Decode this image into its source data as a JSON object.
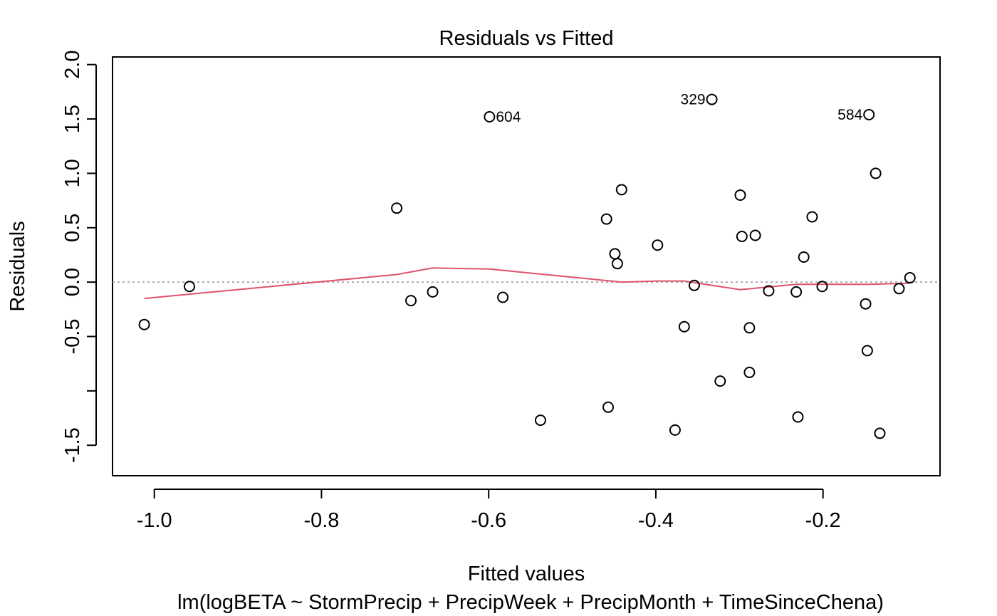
{
  "chart_data": {
    "type": "scatter",
    "title": "Residuals vs Fitted",
    "xlabel": "Fitted values",
    "subtitle": "lm(logBETA ~ StormPrecip + PrecipWeek + PrecipMonth + TimeSinceChena)",
    "ylabel": "Residuals",
    "xlim": [
      -1.05,
      -0.06
    ],
    "ylim": [
      -1.78,
      2.07
    ],
    "x_ticks": [
      -1.0,
      -0.8,
      -0.6,
      -0.4,
      -0.2
    ],
    "x_tick_labels": [
      "-1.0",
      "-0.8",
      "-0.6",
      "-0.4",
      "-0.2"
    ],
    "y_ticks": [
      -1.5,
      -1.0,
      -0.5,
      0.0,
      0.5,
      1.0,
      1.5,
      2.0
    ],
    "y_tick_labels": [
      "-1.5",
      "",
      "-0.5",
      "0.0",
      "0.5",
      "1.0",
      "1.5",
      "2.0"
    ],
    "reference_line": {
      "y": 0,
      "style": "dotted",
      "color": "#aaaaaa"
    },
    "points": [
      {
        "x": -1.012,
        "y": -0.39
      },
      {
        "x": -0.958,
        "y": -0.04
      },
      {
        "x": -0.71,
        "y": 0.68
      },
      {
        "x": -0.693,
        "y": -0.17
      },
      {
        "x": -0.667,
        "y": -0.09
      },
      {
        "x": -0.599,
        "y": 1.52,
        "label": "604"
      },
      {
        "x": -0.583,
        "y": -0.14
      },
      {
        "x": -0.538,
        "y": -1.27
      },
      {
        "x": -0.459,
        "y": 0.58
      },
      {
        "x": -0.457,
        "y": -1.15
      },
      {
        "x": -0.449,
        "y": 0.26
      },
      {
        "x": -0.446,
        "y": 0.17
      },
      {
        "x": -0.441,
        "y": 0.85
      },
      {
        "x": -0.398,
        "y": 0.34
      },
      {
        "x": -0.377,
        "y": -1.36
      },
      {
        "x": -0.366,
        "y": -0.41
      },
      {
        "x": -0.354,
        "y": -0.03
      },
      {
        "x": -0.333,
        "y": 1.68,
        "label": "329"
      },
      {
        "x": -0.323,
        "y": -0.91
      },
      {
        "x": -0.299,
        "y": 0.8
      },
      {
        "x": -0.297,
        "y": 0.42
      },
      {
        "x": -0.288,
        "y": -0.42
      },
      {
        "x": -0.288,
        "y": -0.83
      },
      {
        "x": -0.281,
        "y": 0.43
      },
      {
        "x": -0.265,
        "y": -0.08
      },
      {
        "x": -0.232,
        "y": -0.09
      },
      {
        "x": -0.23,
        "y": -1.24
      },
      {
        "x": -0.223,
        "y": 0.23
      },
      {
        "x": -0.213,
        "y": 0.6
      },
      {
        "x": -0.201,
        "y": -0.04
      },
      {
        "x": -0.149,
        "y": -0.2
      },
      {
        "x": -0.147,
        "y": -0.63
      },
      {
        "x": -0.145,
        "y": 1.54,
        "label": "584"
      },
      {
        "x": -0.137,
        "y": 1.0
      },
      {
        "x": -0.132,
        "y": -1.39
      },
      {
        "x": -0.109,
        "y": -0.06
      },
      {
        "x": -0.096,
        "y": 0.04
      }
    ],
    "smoother": {
      "color": "#DF536B",
      "x": [
        -1.012,
        -0.71,
        -0.667,
        -0.599,
        -0.441,
        -0.398,
        -0.366,
        -0.299,
        -0.232,
        -0.145,
        -0.096
      ],
      "y": [
        -0.15,
        0.07,
        0.13,
        0.12,
        0.0,
        0.01,
        0.01,
        -0.07,
        -0.02,
        -0.02,
        -0.01
      ]
    }
  }
}
